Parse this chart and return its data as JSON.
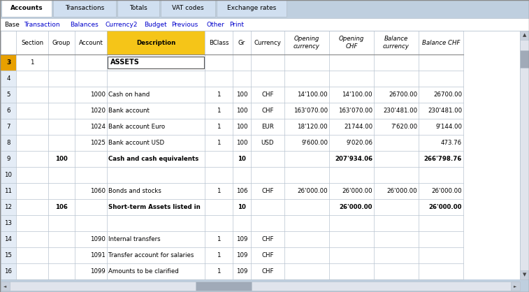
{
  "tabs": [
    "Accounts",
    "Transactions",
    "Totals",
    "VAT codes",
    "Exchange rates"
  ],
  "active_tab": "Accounts",
  "menu_items": [
    "Base",
    "Transaction",
    "Balances",
    "Currency2",
    "Budget",
    "Previous",
    "Other",
    "Print"
  ],
  "menu_links": [
    "Transaction",
    "Balances",
    "Currency2",
    "Budget",
    "Previous",
    "Other",
    "Print"
  ],
  "header_bg": "#f5c518",
  "tab_bg": "#d0dff0",
  "active_tab_bg": "#ffffff",
  "rows": [
    {
      "row": 3,
      "section": "1",
      "group": "",
      "account": "",
      "description": "ASSETS",
      "bclass": "",
      "gr": "",
      "currency": "",
      "open_curr": "",
      "open_chf": "",
      "bal_curr": "",
      "bal_chf": "",
      "bold": false,
      "desc_border": true,
      "row_bg": "#f5e8a0"
    },
    {
      "row": 4,
      "section": "",
      "group": "",
      "account": "",
      "description": "",
      "bclass": "",
      "gr": "",
      "currency": "",
      "open_curr": "",
      "open_chf": "",
      "bal_curr": "",
      "bal_chf": "",
      "bold": false,
      "desc_border": false,
      "row_bg": "#ffffff"
    },
    {
      "row": 5,
      "section": "",
      "group": "",
      "account": "1000",
      "description": "Cash on hand",
      "bclass": "1",
      "gr": "100",
      "currency": "CHF",
      "open_curr": "14'100.00",
      "open_chf": "14'100.00",
      "bal_curr": "26700.00",
      "bal_chf": "26700.00",
      "bold": false,
      "desc_border": false,
      "row_bg": "#ffffff"
    },
    {
      "row": 6,
      "section": "",
      "group": "",
      "account": "1020",
      "description": "Bank account",
      "bclass": "1",
      "gr": "100",
      "currency": "CHF",
      "open_curr": "163'070.00",
      "open_chf": "163'070.00",
      "bal_curr": "230'481.00",
      "bal_chf": "230'481.00",
      "bold": false,
      "desc_border": false,
      "row_bg": "#ffffff"
    },
    {
      "row": 7,
      "section": "",
      "group": "",
      "account": "1024",
      "description": "Bank account Euro",
      "bclass": "1",
      "gr": "100",
      "currency": "EUR",
      "open_curr": "18'120.00",
      "open_chf": "21744.00",
      "bal_curr": "7'620.00",
      "bal_chf": "9'144.00",
      "bold": false,
      "desc_border": false,
      "row_bg": "#ffffff"
    },
    {
      "row": 8,
      "section": "",
      "group": "",
      "account": "1025",
      "description": "Bank account USD",
      "bclass": "1",
      "gr": "100",
      "currency": "USD",
      "open_curr": "9'600.00",
      "open_chf": "9'020.06",
      "bal_curr": "",
      "bal_chf": "473.76",
      "bold": false,
      "desc_border": false,
      "row_bg": "#ffffff"
    },
    {
      "row": 9,
      "section": "",
      "group": "100",
      "account": "",
      "description": "Cash and cash equivalents",
      "bclass": "",
      "gr": "10",
      "currency": "",
      "open_curr": "",
      "open_chf": "207'934.06",
      "bal_curr": "",
      "bal_chf": "266'798.76",
      "bold": true,
      "desc_border": false,
      "row_bg": "#ffffff"
    },
    {
      "row": 10,
      "section": "",
      "group": "",
      "account": "",
      "description": "",
      "bclass": "",
      "gr": "",
      "currency": "",
      "open_curr": "",
      "open_chf": "",
      "bal_curr": "",
      "bal_chf": "",
      "bold": false,
      "desc_border": false,
      "row_bg": "#ffffff"
    },
    {
      "row": 11,
      "section": "",
      "group": "",
      "account": "1060",
      "description": "Bonds and stocks",
      "bclass": "1",
      "gr": "106",
      "currency": "CHF",
      "open_curr": "26'000.00",
      "open_chf": "26'000.00",
      "bal_curr": "26'000.00",
      "bal_chf": "26'000.00",
      "bold": false,
      "desc_border": false,
      "row_bg": "#ffffff"
    },
    {
      "row": 12,
      "section": "",
      "group": "106",
      "account": "",
      "description": "Short-term Assets listed in",
      "bclass": "",
      "gr": "10",
      "currency": "",
      "open_curr": "",
      "open_chf": "26'000.00",
      "bal_curr": "",
      "bal_chf": "26'000.00",
      "bold": true,
      "desc_border": false,
      "row_bg": "#ffffff"
    },
    {
      "row": 13,
      "section": "",
      "group": "",
      "account": "",
      "description": "",
      "bclass": "",
      "gr": "",
      "currency": "",
      "open_curr": "",
      "open_chf": "",
      "bal_curr": "",
      "bal_chf": "",
      "bold": false,
      "desc_border": false,
      "row_bg": "#ffffff"
    },
    {
      "row": 14,
      "section": "",
      "group": "",
      "account": "1090",
      "description": "Internal transfers",
      "bclass": "1",
      "gr": "109",
      "currency": "CHF",
      "open_curr": "",
      "open_chf": "",
      "bal_curr": "",
      "bal_chf": "",
      "bold": false,
      "desc_border": false,
      "row_bg": "#ffffff"
    },
    {
      "row": 15,
      "section": "",
      "group": "",
      "account": "1091",
      "description": "Transfer account for salaries",
      "bclass": "1",
      "gr": "109",
      "currency": "CHF",
      "open_curr": "",
      "open_chf": "",
      "bal_curr": "",
      "bal_chf": "",
      "bold": false,
      "desc_border": false,
      "row_bg": "#ffffff"
    },
    {
      "row": 16,
      "section": "",
      "group": "",
      "account": "1099",
      "description": "Amounts to be clarified",
      "bclass": "1",
      "gr": "109",
      "currency": "CHF",
      "open_curr": "",
      "open_chf": "",
      "bal_curr": "",
      "bal_chf": "",
      "bold": false,
      "desc_border": false,
      "row_bg": "#ffffff"
    }
  ],
  "grid_color": "#b8c4d0",
  "text_color": "#000000",
  "link_color": "#0000cc",
  "fig_bg": "#bfcfdf"
}
